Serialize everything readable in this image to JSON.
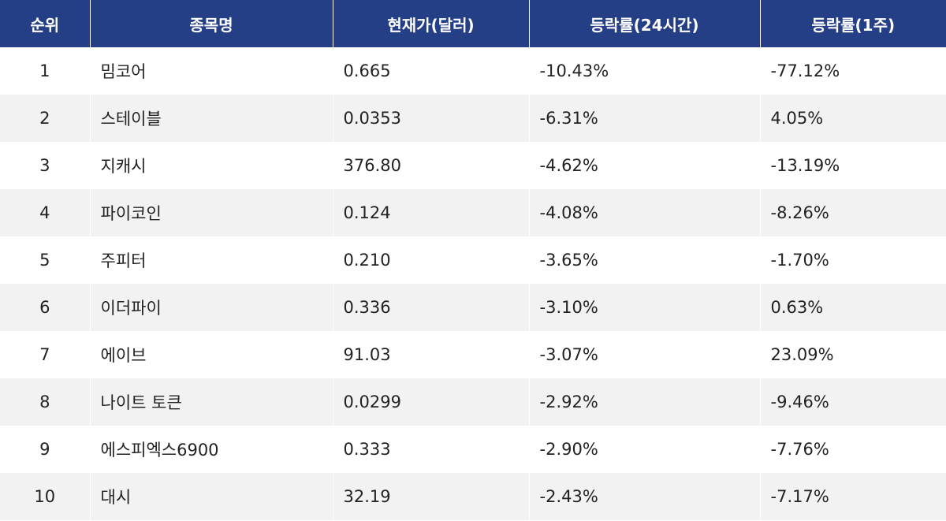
{
  "table": {
    "headers": {
      "rank": "순위",
      "name": "종목명",
      "price": "현재가(달러)",
      "change_24h": "등락률(24시간)",
      "change_1w": "등락률(1주)"
    },
    "rows": [
      {
        "rank": "1",
        "name": "밈코어",
        "price": "0.665",
        "change_24h": "-10.43%",
        "change_1w": "-77.12%"
      },
      {
        "rank": "2",
        "name": "스테이블",
        "price": "0.0353",
        "change_24h": "-6.31%",
        "change_1w": "4.05%"
      },
      {
        "rank": "3",
        "name": "지캐시",
        "price": "376.80",
        "change_24h": "-4.62%",
        "change_1w": "-13.19%"
      },
      {
        "rank": "4",
        "name": "파이코인",
        "price": "0.124",
        "change_24h": "-4.08%",
        "change_1w": "-8.26%"
      },
      {
        "rank": "5",
        "name": "주피터",
        "price": "0.210",
        "change_24h": "-3.65%",
        "change_1w": "-1.70%"
      },
      {
        "rank": "6",
        "name": "이더파이",
        "price": "0.336",
        "change_24h": "-3.10%",
        "change_1w": "0.63%"
      },
      {
        "rank": "7",
        "name": "에이브",
        "price": "91.03",
        "change_24h": "-3.07%",
        "change_1w": "23.09%"
      },
      {
        "rank": "8",
        "name": "나이트 토큰",
        "price": "0.0299",
        "change_24h": "-2.92%",
        "change_1w": "-9.46%"
      },
      {
        "rank": "9",
        "name": "에스피엑스6900",
        "price": "0.333",
        "change_24h": "-2.90%",
        "change_1w": "-7.76%"
      },
      {
        "rank": "10",
        "name": "대시",
        "price": "32.19",
        "change_24h": "-2.43%",
        "change_1w": "-7.17%"
      }
    ]
  }
}
